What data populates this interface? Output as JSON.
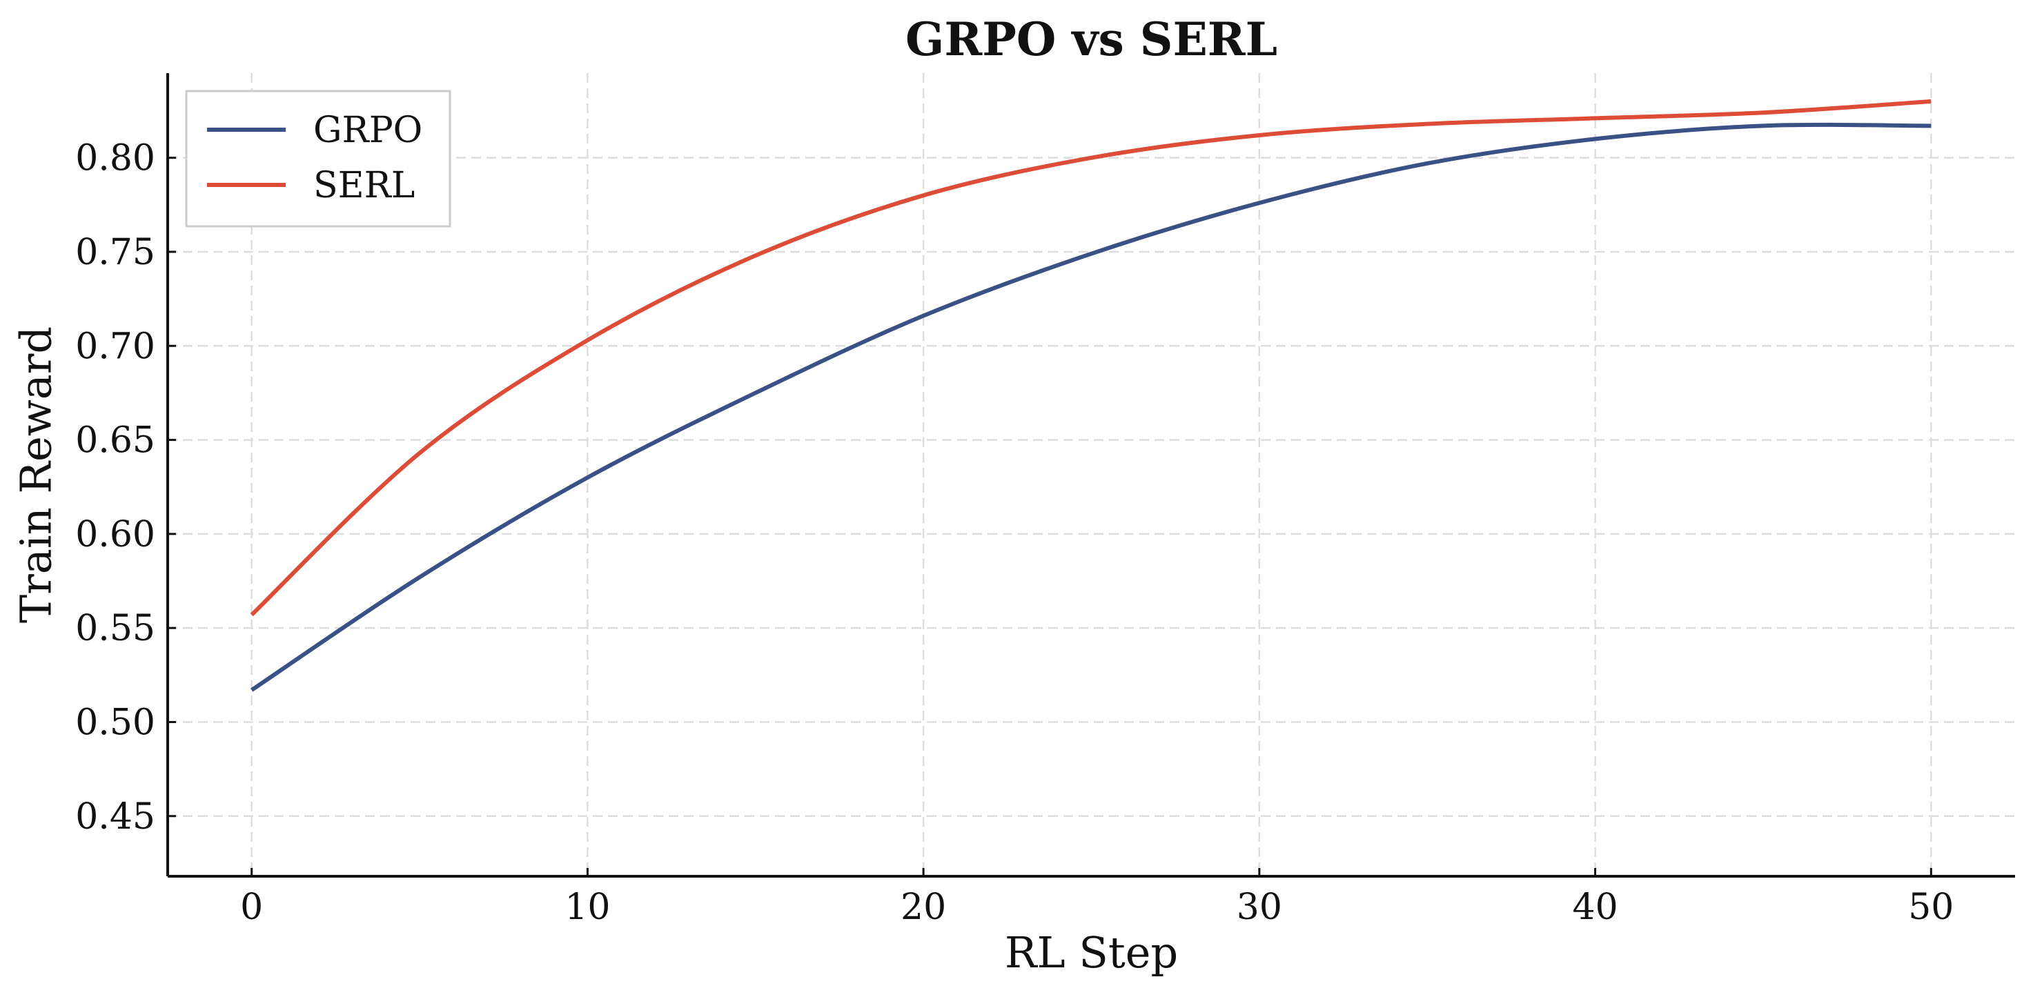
{
  "chart_data": {
    "type": "line",
    "title": "GRPO vs SERL",
    "xlabel": "RL Step",
    "ylabel": "Train Reward",
    "xlim": [
      -2.5,
      52.5
    ],
    "ylim": [
      0.418,
      0.845
    ],
    "xticks": [
      0,
      10,
      20,
      30,
      40,
      50
    ],
    "yticks": [
      0.45,
      0.5,
      0.55,
      0.6,
      0.65,
      0.7,
      0.75,
      0.8
    ],
    "grid": true,
    "legend_position": "top-left",
    "x": [
      0,
      5,
      10,
      15,
      20,
      25,
      30,
      35,
      40,
      45,
      50
    ],
    "series": [
      {
        "name": "GRPO",
        "color": "#3a5186",
        "values": [
          0.517,
          0.577,
          0.63,
          0.675,
          0.716,
          0.749,
          0.776,
          0.797,
          0.81,
          0.817,
          0.817
        ]
      },
      {
        "name": "SERL",
        "color": "#dc4c37",
        "values": [
          0.557,
          0.643,
          0.703,
          0.748,
          0.78,
          0.8,
          0.812,
          0.818,
          0.821,
          0.824,
          0.83
        ]
      }
    ]
  }
}
